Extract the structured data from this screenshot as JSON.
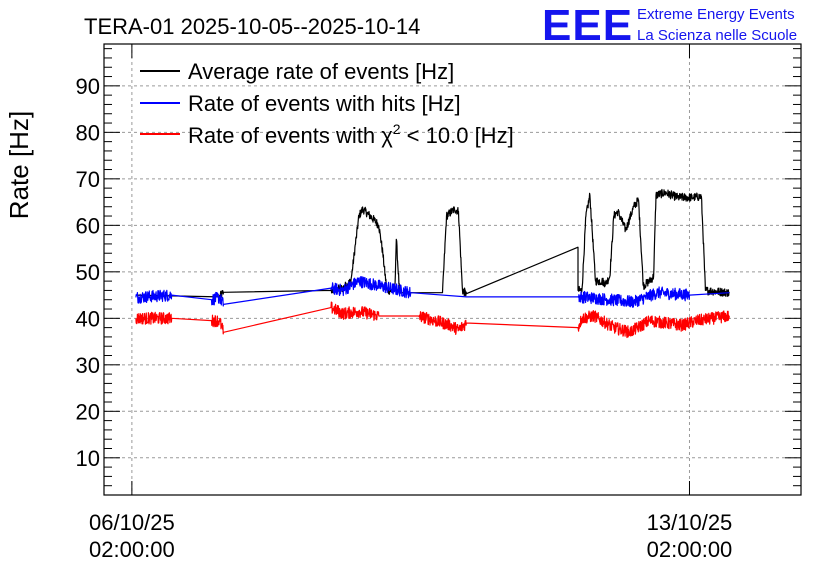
{
  "chart_data": {
    "type": "line",
    "title": "TERA-01 2025-10-05--2025-10-14",
    "ylabel": "Rate [Hz]",
    "xlabel": "",
    "ylim": [
      2,
      99
    ],
    "xlim": [
      -0.35,
      8.4
    ],
    "yticks": [
      "10",
      "20",
      "30",
      "40",
      "50",
      "60",
      "70",
      "80",
      "90"
    ],
    "yticks_values": [
      10,
      20,
      30,
      40,
      50,
      60,
      70,
      80,
      90
    ],
    "xticks": [
      {
        "value": 0,
        "date": "06/10/25",
        "time": "02:00:00"
      },
      {
        "value": 7,
        "date": "13/10/25",
        "time": "02:00:00"
      }
    ],
    "grid": true,
    "legend_position": "top-left",
    "series": [
      {
        "name": "Average rate of events [Hz]",
        "color": "#000000",
        "points": [
          [
            0.05,
            45
          ],
          [
            1.1,
            44.6
          ],
          [
            1.15,
            45.6
          ],
          [
            2.5,
            46
          ],
          [
            2.65,
            46.5
          ],
          [
            2.75,
            48
          ],
          [
            2.85,
            62
          ],
          [
            2.9,
            63.5
          ],
          [
            3.05,
            61
          ],
          [
            3.1,
            60
          ],
          [
            3.15,
            54
          ],
          [
            3.2,
            46
          ],
          [
            3.3,
            46
          ],
          [
            3.32,
            57
          ],
          [
            3.36,
            45.5
          ],
          [
            3.9,
            45.5
          ],
          [
            3.95,
            62
          ],
          [
            4.05,
            63.5
          ],
          [
            4.1,
            63
          ],
          [
            4.15,
            46
          ],
          [
            4.2,
            45.3
          ],
          [
            5.6,
            55.3
          ],
          [
            5.6,
            46
          ],
          [
            5.65,
            46
          ],
          [
            5.7,
            62
          ],
          [
            5.75,
            66.5
          ],
          [
            5.82,
            48
          ],
          [
            5.9,
            48
          ],
          [
            5.95,
            47.5
          ],
          [
            6.0,
            49
          ],
          [
            6.05,
            62
          ],
          [
            6.1,
            63
          ],
          [
            6.2,
            59
          ],
          [
            6.3,
            64
          ],
          [
            6.36,
            65.5
          ],
          [
            6.42,
            47
          ],
          [
            6.5,
            48
          ],
          [
            6.55,
            49
          ],
          [
            6.58,
            66.5
          ],
          [
            6.7,
            67
          ],
          [
            6.85,
            66
          ],
          [
            6.95,
            66
          ],
          [
            7.05,
            66
          ],
          [
            7.15,
            66.2
          ],
          [
            7.2,
            46
          ],
          [
            7.5,
            45.5
          ]
        ]
      },
      {
        "name": "Rate of events with hits [Hz]",
        "color": "#0000ff",
        "points": [
          [
            0.05,
            44.5
          ],
          [
            0.5,
            45
          ],
          [
            1.0,
            44
          ],
          [
            1.1,
            44.5
          ],
          [
            1.15,
            43
          ],
          [
            2.5,
            46.5
          ],
          [
            2.65,
            46
          ],
          [
            2.85,
            48
          ],
          [
            3.1,
            47
          ],
          [
            3.5,
            45.5
          ],
          [
            4.2,
            44.6
          ],
          [
            5.6,
            44.6
          ],
          [
            5.65,
            44.6
          ],
          [
            6.0,
            44
          ],
          [
            6.3,
            43.5
          ],
          [
            6.6,
            45.5
          ],
          [
            7.0,
            45
          ],
          [
            7.5,
            45.5
          ]
        ]
      },
      {
        "name": "Rate of events with χ² < 10.0 [Hz]",
        "color": "#ff0000",
        "points": [
          [
            0.05,
            40
          ],
          [
            0.5,
            40
          ],
          [
            1.0,
            39.5
          ],
          [
            1.1,
            39.5
          ],
          [
            1.15,
            37
          ],
          [
            2.5,
            42.3
          ],
          [
            2.65,
            41
          ],
          [
            2.85,
            41.5
          ],
          [
            3.1,
            40.5
          ],
          [
            3.6,
            40.5
          ],
          [
            4.0,
            38.5
          ],
          [
            4.1,
            37.5
          ],
          [
            4.2,
            39
          ],
          [
            5.6,
            38
          ],
          [
            5.65,
            40
          ],
          [
            5.8,
            40.5
          ],
          [
            6.05,
            38
          ],
          [
            6.25,
            37
          ],
          [
            6.5,
            39.5
          ],
          [
            6.9,
            38.5
          ],
          [
            7.1,
            39.5
          ],
          [
            7.5,
            40.5
          ]
        ]
      }
    ]
  },
  "logo": {
    "mark": "EEE",
    "line1": "Extreme Energy Events",
    "line2": "La Scienza nelle Scuole"
  },
  "legend_labels": {
    "avg": "Average rate of events [Hz]",
    "hits": "Rate of events with hits [Hz]",
    "chi_prefix": "Rate of events with χ",
    "chi_sup": "2",
    "chi_suffix": " < 10.0 [Hz]"
  }
}
